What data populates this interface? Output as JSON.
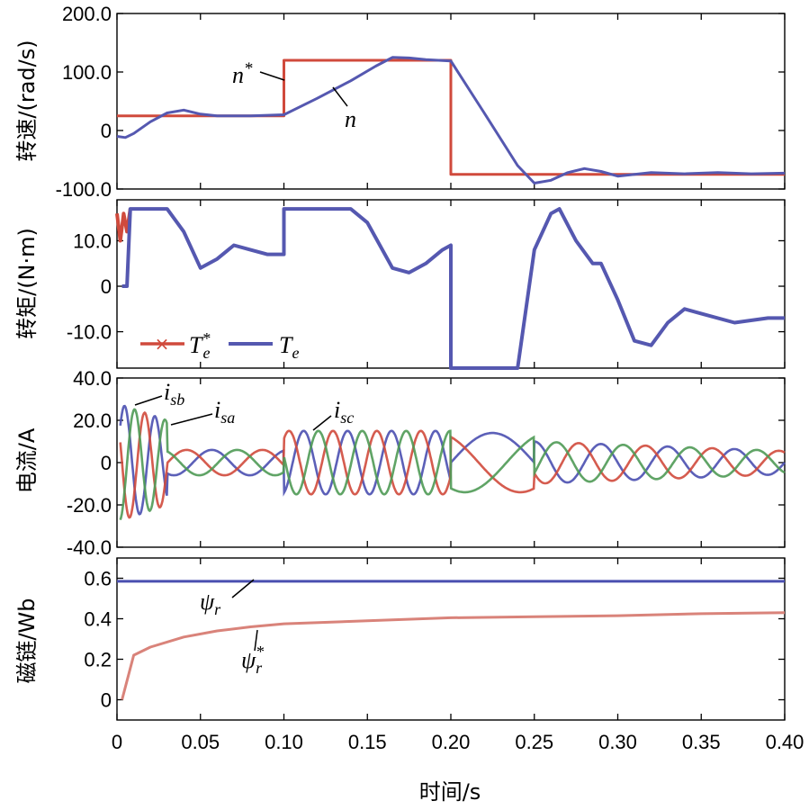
{
  "chart_data": [
    {
      "type": "line",
      "ylabel": "转速/(rad/s)",
      "ylim": [
        -100,
        200
      ],
      "xlim": [
        0,
        0.4
      ],
      "yticks": [
        "200.0",
        "100.0",
        "0",
        "-100.0"
      ],
      "ytick_values": [
        200,
        100,
        0,
        -100
      ],
      "series": [
        {
          "name": "n*",
          "color": "#d04a3c",
          "x": [
            0,
            0.1,
            0.1,
            0.2,
            0.2,
            0.4
          ],
          "y": [
            25,
            25,
            120,
            120,
            -75,
            -75
          ]
        },
        {
          "name": "n",
          "color": "#5558b0",
          "x": [
            0,
            0.005,
            0.01,
            0.02,
            0.03,
            0.04,
            0.05,
            0.06,
            0.08,
            0.1,
            0.12,
            0.14,
            0.155,
            0.165,
            0.175,
            0.185,
            0.2,
            0.22,
            0.24,
            0.25,
            0.26,
            0.27,
            0.28,
            0.29,
            0.3,
            0.32,
            0.34,
            0.36,
            0.38,
            0.4
          ],
          "y": [
            -10,
            -12,
            -5,
            15,
            30,
            35,
            28,
            25,
            25,
            27,
            55,
            85,
            110,
            125,
            124,
            121,
            119,
            30,
            -60,
            -90,
            -85,
            -72,
            -65,
            -70,
            -78,
            -72,
            -74,
            -72,
            -74,
            -73
          ]
        }
      ],
      "annotations": [
        {
          "base": "n",
          "sup": "*"
        },
        {
          "base": "n",
          "sup": ""
        }
      ]
    },
    {
      "type": "line",
      "ylabel": "转矩/(N·m)",
      "ylim": [
        -18,
        19
      ],
      "xlim": [
        0,
        0.4
      ],
      "yticks": [
        "10.0",
        "0",
        "-10.0"
      ],
      "ytick_values": [
        10,
        0,
        -10
      ],
      "series": [
        {
          "name": "Te*",
          "color": "#d04a3c",
          "x": [
            0,
            0.002,
            0.004,
            0.006,
            0.008
          ],
          "y": [
            16,
            10,
            16,
            12,
            17
          ]
        },
        {
          "name": "Te",
          "color": "#5558b0",
          "x": [
            0.003,
            0.006,
            0.008,
            0.01,
            0.02,
            0.03,
            0.04,
            0.05,
            0.06,
            0.07,
            0.08,
            0.09,
            0.1,
            0.1,
            0.12,
            0.14,
            0.15,
            0.165,
            0.175,
            0.185,
            0.195,
            0.2,
            0.2,
            0.21,
            0.22,
            0.24,
            0.25,
            0.26,
            0.265,
            0.275,
            0.285,
            0.29,
            0.3,
            0.31,
            0.32,
            0.33,
            0.34,
            0.35,
            0.37,
            0.39,
            0.4
          ],
          "y": [
            0,
            0,
            17,
            17,
            17,
            17,
            12,
            4,
            6,
            9,
            8,
            7,
            7,
            17,
            17,
            17,
            14,
            4,
            3,
            5,
            8,
            9,
            -18,
            -18,
            -18,
            -18,
            8,
            16,
            17,
            10,
            5,
            5,
            -3,
            -12,
            -13,
            -8,
            -5,
            -6,
            -8,
            -7,
            -7
          ]
        }
      ],
      "legend": [
        {
          "base": "T",
          "sub": "e",
          "sup": "*",
          "marker": "x",
          "color": "#d04a3c"
        },
        {
          "base": "T",
          "sub": "e",
          "sup": "",
          "marker": "line",
          "color": "#5558b0"
        }
      ]
    },
    {
      "type": "line",
      "ylabel": "电流/A",
      "ylim": [
        -40,
        40
      ],
      "xlim": [
        0,
        0.4
      ],
      "yticks": [
        "40.0",
        "20.0",
        "0",
        "-20.0",
        "-40.0"
      ],
      "ytick_values": [
        40,
        20,
        0,
        -20,
        -40
      ],
      "series": [
        {
          "name": "isa",
          "color": "#4a4fb0",
          "phase": 0
        },
        {
          "name": "isb",
          "color": "#d04a3c",
          "phase": 2.094
        },
        {
          "name": "isc",
          "color": "#4f9a55",
          "phase": 4.189
        }
      ],
      "annotations": [
        {
          "base": "i",
          "sub": "sb"
        },
        {
          "base": "i",
          "sub": "sa"
        },
        {
          "base": "i",
          "sub": "sc"
        }
      ]
    },
    {
      "type": "line",
      "ylabel": "磁链/Wb",
      "xlabel": "时间/s",
      "ylim": [
        -0.1,
        0.7
      ],
      "xlim": [
        0,
        0.4
      ],
      "yticks": [
        "0.6",
        "0.4",
        "0.2",
        "0"
      ],
      "ytick_values": [
        0.6,
        0.4,
        0.2,
        0
      ],
      "xticks": [
        "0",
        "0.05",
        "0.10",
        "0.15",
        "0.20",
        "0.25",
        "0.30",
        "0.35",
        "0.40"
      ],
      "xtick_values": [
        0,
        0.05,
        0.1,
        0.15,
        0.2,
        0.25,
        0.3,
        0.35,
        0.4
      ],
      "series": [
        {
          "name": "ψr",
          "color": "#4a4fb0",
          "x": [
            0,
            0.4
          ],
          "y": [
            0.585,
            0.585
          ]
        },
        {
          "name": "ψr*",
          "color": "#d9837a",
          "x": [
            0.003,
            0.01,
            0.02,
            0.04,
            0.06,
            0.08,
            0.1,
            0.15,
            0.2,
            0.25,
            0.3,
            0.35,
            0.4
          ],
          "y": [
            0,
            0.22,
            0.26,
            0.31,
            0.34,
            0.36,
            0.375,
            0.39,
            0.405,
            0.41,
            0.415,
            0.425,
            0.43
          ]
        }
      ],
      "annotations": [
        {
          "base": "ψ",
          "sub": "r",
          "sup": ""
        },
        {
          "base": "ψ",
          "sub": "r",
          "sup": "*"
        }
      ]
    }
  ]
}
